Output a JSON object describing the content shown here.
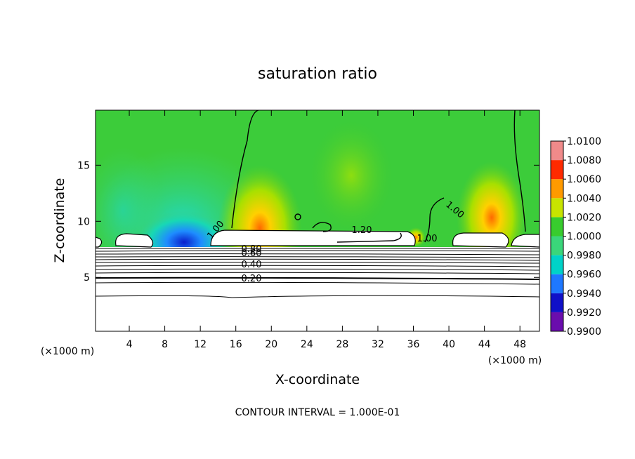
{
  "chart_data": {
    "type": "contour",
    "title": "saturation ratio",
    "x_label": "X-coordinate",
    "y_label": "Z-coordinate",
    "x_unit": "(×1000 m)",
    "footer": "CONTOUR INTERVAL = 1.000E-01",
    "xlim": [
      0.2,
      50.2
    ],
    "xticks": [
      4,
      8,
      12,
      16,
      20,
      24,
      28,
      32,
      36,
      40,
      44,
      48
    ],
    "ylim": [
      0.2,
      19.9
    ],
    "yticks": [
      5,
      10,
      15
    ],
    "contour_labels": [
      {
        "value": 0.2,
        "label": "0.20"
      },
      {
        "value": 0.4,
        "label": "0.40"
      },
      {
        "value": 0.6,
        "label": "0.60"
      },
      {
        "value": 0.8,
        "label": "0.80"
      },
      {
        "value": 1.0,
        "label": "1.00"
      },
      {
        "value": 1.2,
        "label": "1.20"
      }
    ],
    "colorbar": {
      "lim": [
        0.99,
        1.01
      ],
      "ticks": [
        {
          "value": 0.99,
          "label": "0.9900"
        },
        {
          "value": 0.992,
          "label": "0.9920"
        },
        {
          "value": 0.994,
          "label": "0.9940"
        },
        {
          "value": 0.996,
          "label": "0.9960"
        },
        {
          "value": 0.998,
          "label": "0.9980"
        },
        {
          "value": 1.0,
          "label": "1.0000"
        },
        {
          "value": 1.002,
          "label": "1.0020"
        },
        {
          "value": 1.004,
          "label": "1.0040"
        },
        {
          "value": 1.006,
          "label": "1.0060"
        },
        {
          "value": 1.008,
          "label": "1.0080"
        },
        {
          "value": 1.01,
          "label": "1.0100"
        }
      ],
      "colors": [
        "#6a0dad",
        "#1010c8",
        "#1e78ff",
        "#00d2c8",
        "#3ad67a",
        "#38cc2e",
        "#c8e400",
        "#ff9a00",
        "#ff2a00",
        "#f08a8a"
      ]
    }
  }
}
